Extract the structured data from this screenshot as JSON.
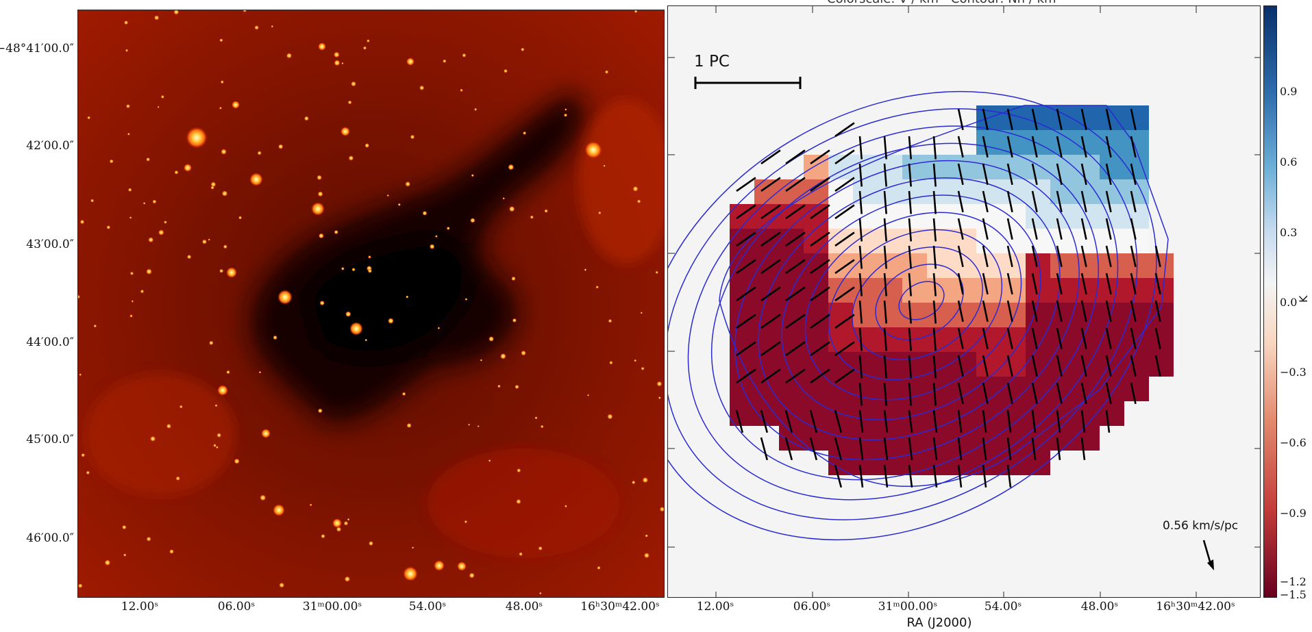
{
  "left_panel": {
    "y_ticks": [
      "−48°41′00.0″",
      "42′00.0″",
      "43′00.0″",
      "44′00.0″",
      "45′00.0″",
      "46′00.0″"
    ],
    "x_ticks": [
      "12.00ˢ",
      "06.00ˢ",
      "31ᵐ00.00ˢ",
      "54.00ˢ",
      "48.00ˢ",
      "16ʰ30ᵐ42.00ˢ"
    ]
  },
  "right_panel": {
    "title": "Colorscale: V / km - Contour: Nh / km",
    "x_ticks": [
      "12.00ˢ",
      "06.00ˢ",
      "31ᵐ00.00ˢ",
      "54.00ˢ",
      "48.00ˢ",
      "16ʰ30ᵐ42.00ˢ"
    ],
    "x_axis_title": "RA (J2000)",
    "scale_bar_label": "1 PC",
    "arrow_label": "0.56 km/s/pc"
  },
  "colorbar": {
    "ticks": [
      "0.9",
      "0.6",
      "0.3",
      "0.0",
      "−0.3",
      "−0.6",
      "−0.9",
      "−1.2",
      "−1.5"
    ],
    "unit": "K",
    "colors": [
      "#08306b",
      "#2f6fae",
      "#6aaed6",
      "#c6dbef",
      "#f4f4f4",
      "#f8d6c0",
      "#e38a6e",
      "#c33d3a",
      "#67001f"
    ]
  },
  "style": {
    "nebula_dark": "#1a0000",
    "nebula_red": "#a51a00",
    "contour_color": "#2a2ad4"
  }
}
